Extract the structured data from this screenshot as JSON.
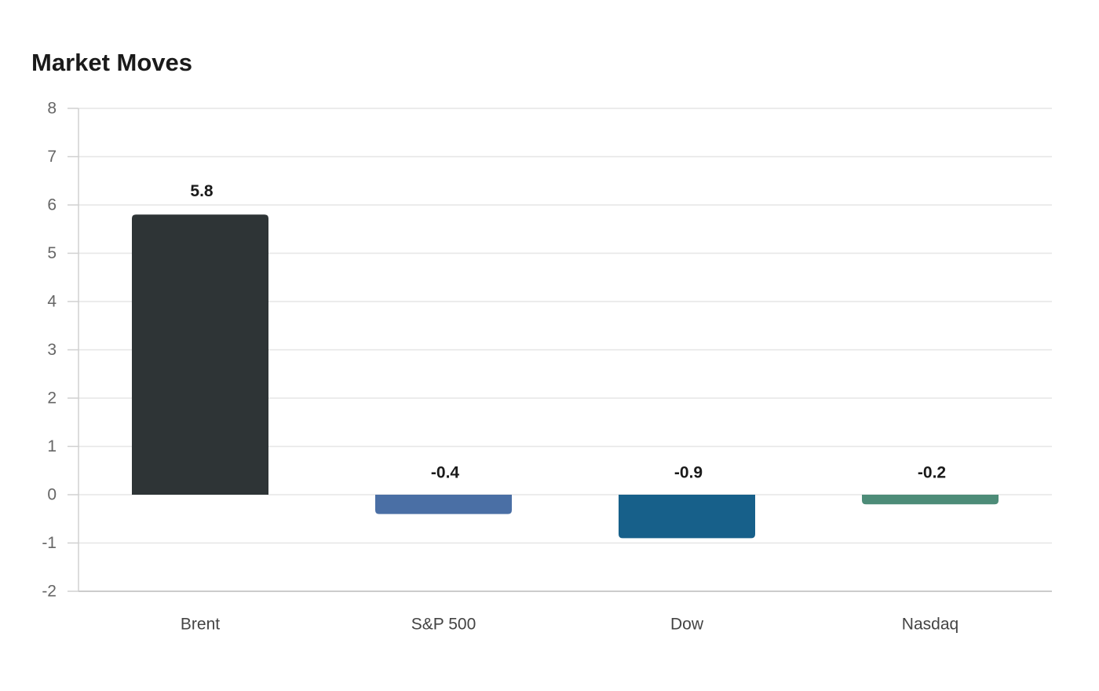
{
  "chart_data": {
    "type": "bar",
    "title": "Market Moves",
    "categories": [
      "Brent",
      "S&P 500",
      "Dow",
      "Nasdaq"
    ],
    "values": [
      5.8,
      -0.4,
      -0.9,
      -0.2
    ],
    "value_labels": [
      "5.8",
      "-0.4",
      "-0.9",
      "-0.2"
    ],
    "colors": [
      "#2e3436",
      "#4a6fa5",
      "#17608a",
      "#4d8c78"
    ],
    "ylim": [
      -2,
      8
    ],
    "yticks": [
      8,
      7,
      6,
      5,
      4,
      3,
      2,
      1,
      0,
      -1,
      -2
    ],
    "grid": true,
    "xlabel": "",
    "ylabel": ""
  }
}
